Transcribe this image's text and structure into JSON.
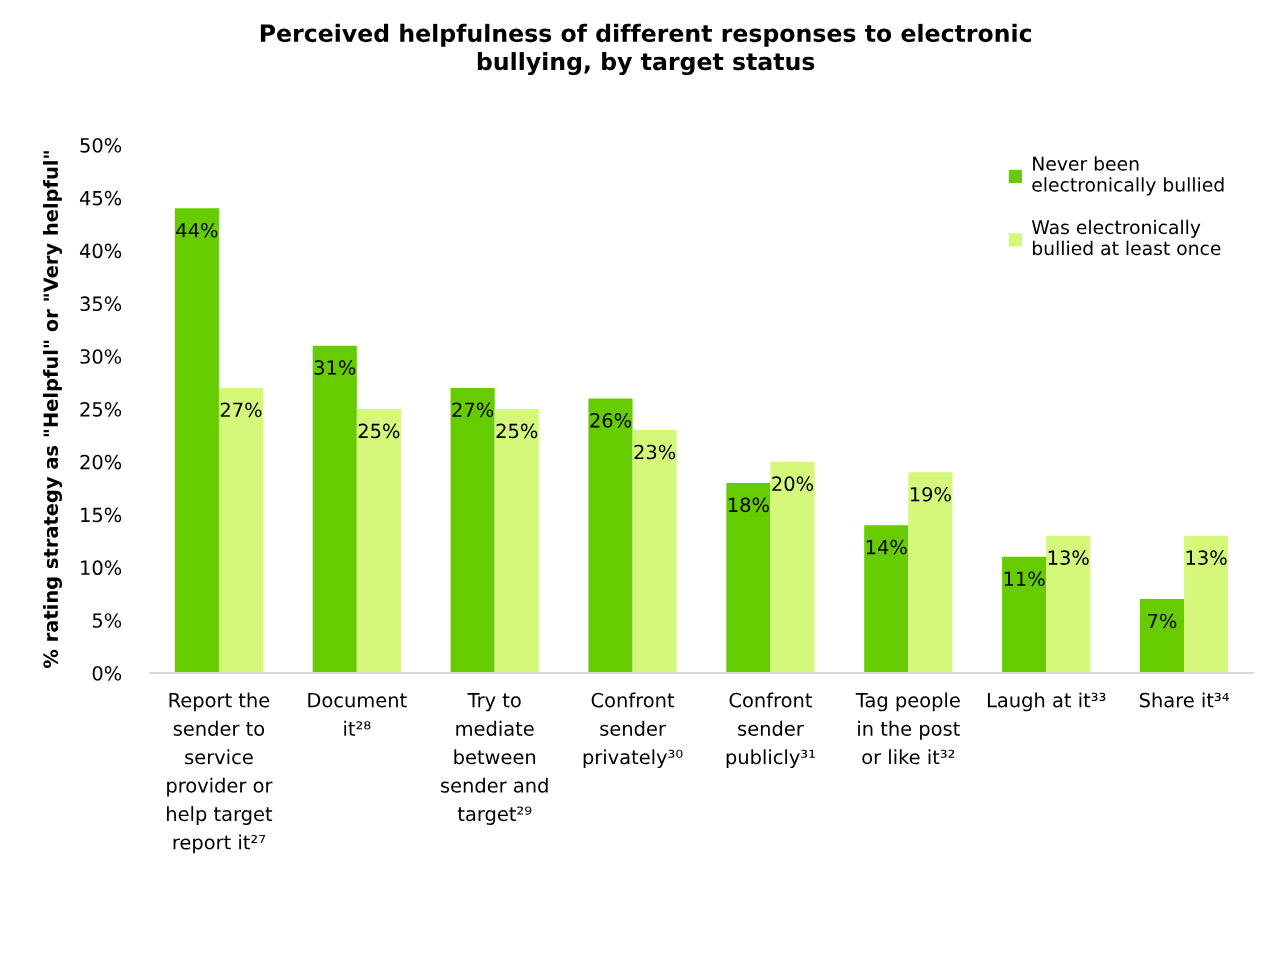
{
  "chart_data": {
    "type": "bar",
    "title": "Perceived helpfulness of different responses to electronic\nbullying, by target status",
    "ylabel": "% rating strategy as \"Helpful\" or \"Very helpful\"",
    "categories": [
      "Report the\nsender to\nservice\nprovider or\nhelp target\nreport it²⁷",
      "Document\nit²⁸",
      "Try to\nmediate\nbetween\nsender and\ntarget²⁹",
      "Confront\nsender\nprivately³⁰",
      "Confront\nsender\npublicly³¹",
      "Tag people\nin the post\nor like it³²",
      "Laugh at it³³",
      "Share it³⁴"
    ],
    "series": [
      {
        "name": "Never been\nelectronically bullied",
        "color": "#66cc00",
        "values": [
          44,
          31,
          27,
          26,
          18,
          14,
          11,
          7
        ],
        "value_labels": [
          "44%",
          "31%",
          "27%",
          "26%",
          "18%",
          "14%",
          "11%",
          "7%"
        ]
      },
      {
        "name": "Was electronically\nbullied at least once",
        "color": "#d4f87a",
        "values": [
          27,
          25,
          25,
          23,
          20,
          19,
          13,
          13
        ],
        "value_labels": [
          "27%",
          "25%",
          "25%",
          "23%",
          "20%",
          "19%",
          "13%",
          "13%"
        ]
      }
    ],
    "ylim": [
      0,
      50
    ],
    "yticks": [
      {
        "value": 0,
        "label": "0%"
      },
      {
        "value": 5,
        "label": "5%"
      },
      {
        "value": 10,
        "label": "10%"
      },
      {
        "value": 15,
        "label": "15%"
      },
      {
        "value": 20,
        "label": "20%"
      },
      {
        "value": 25,
        "label": "25%"
      },
      {
        "value": 30,
        "label": "30%"
      },
      {
        "value": 35,
        "label": "35%"
      },
      {
        "value": 40,
        "label": "40%"
      },
      {
        "value": 45,
        "label": "45%"
      },
      {
        "value": 50,
        "label": "50%"
      }
    ],
    "legend": "top right"
  }
}
